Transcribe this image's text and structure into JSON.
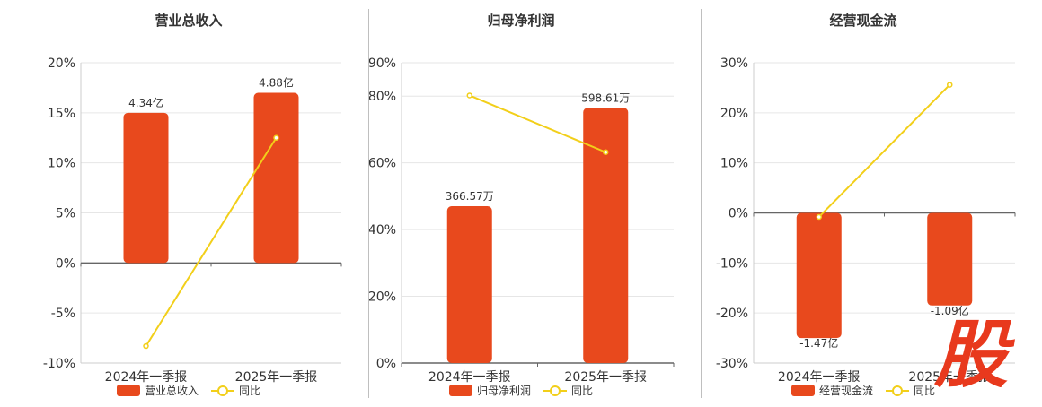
{
  "colors": {
    "bar": "#E8491D",
    "line": "#F2CF1A",
    "grid": "#e6e6e6",
    "axis": "#666666"
  },
  "watermark": {
    "text": "股",
    "color": "#E8391D"
  },
  "chart_data": [
    {
      "type": "bar",
      "title": "营业总收入",
      "categories": [
        "2024年一季报",
        "2025年一季报"
      ],
      "series": [
        {
          "name": "营业总收入",
          "type": "bar",
          "labels": [
            "4.34亿",
            "4.88亿"
          ],
          "bar_pct": [
            15,
            17
          ]
        },
        {
          "name": "同比",
          "type": "line",
          "values": [
            -8.3,
            12.5
          ]
        }
      ],
      "yticks": [
        "20%",
        "15%",
        "10%",
        "5%",
        "0%",
        "-5%",
        "-10%"
      ],
      "ylim": [
        -10,
        20
      ],
      "grid": true
    },
    {
      "type": "bar",
      "title": "归母净利润",
      "categories": [
        "2024年一季报",
        "2025年一季报"
      ],
      "series": [
        {
          "name": "归母净利润",
          "type": "bar",
          "labels": [
            "366.57万",
            "598.61万"
          ],
          "bar_pct": [
            47,
            76.5
          ]
        },
        {
          "name": "同比",
          "type": "line",
          "values": [
            80.2,
            63.2
          ]
        }
      ],
      "yticks": [
        "90%",
        "80%",
        "60%",
        "40%",
        "20%",
        "0%"
      ],
      "ylim": [
        0,
        90
      ],
      "grid": true
    },
    {
      "type": "bar",
      "title": "经营现金流",
      "categories": [
        "2024年一季报",
        "2025年一季报"
      ],
      "series": [
        {
          "name": "经营现金流",
          "type": "bar",
          "labels": [
            "-1.47亿",
            "-1.09亿"
          ],
          "bar_pct": [
            -25,
            -18.5
          ]
        },
        {
          "name": "同比",
          "type": "line",
          "values": [
            -0.8,
            25.6
          ]
        }
      ],
      "yticks": [
        "30%",
        "20%",
        "10%",
        "0%",
        "-10%",
        "-20%",
        "-30%"
      ],
      "ylim": [
        -30,
        30
      ],
      "grid": true
    }
  ]
}
